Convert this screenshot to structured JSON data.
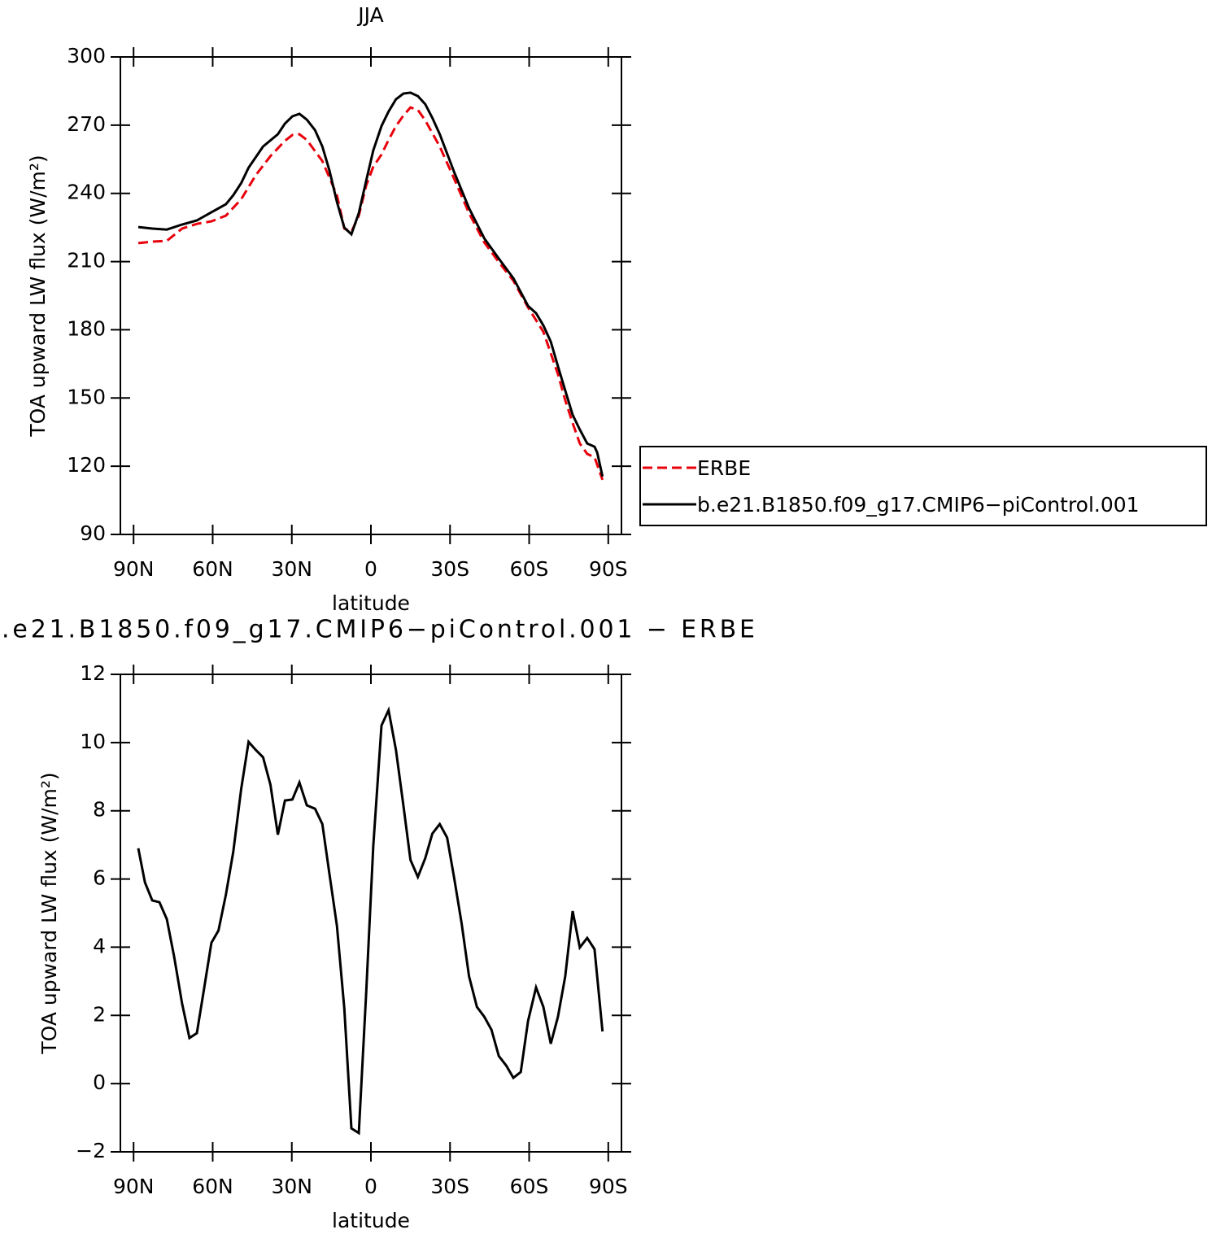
{
  "chart_data": [
    {
      "type": "line",
      "title": "JJA",
      "xlabel": "latitude",
      "ylabel": "TOA upward LW flux (W/m²)",
      "xlim": [
        95,
        -95
      ],
      "xticks": [
        {
          "value": 90,
          "label": "90N"
        },
        {
          "value": 60,
          "label": "60N"
        },
        {
          "value": 30,
          "label": "30N"
        },
        0,
        {
          "value": -30,
          "label": "30S"
        },
        {
          "value": -60,
          "label": "60S"
        },
        {
          "value": -90,
          "label": "90S"
        }
      ],
      "ylim": [
        90,
        300
      ],
      "yticks": [
        90,
        120,
        150,
        180,
        210,
        240,
        270,
        300
      ],
      "legend": "right",
      "series": [
        {
          "name": "ERBE",
          "color": "#e8000b",
          "linestyle": "dashed",
          "x": [
            88.2,
            82.9,
            77.4,
            71.6,
            66.0,
            60.5,
            55.0,
            49.2,
            43.6,
            38.1,
            32.6,
            29.8,
            27.1,
            24.3,
            18.4,
            12.9,
            10.1,
            7.4,
            4.6,
            1.8,
            -0.9,
            -4.0,
            -6.7,
            -9.5,
            -12.3,
            -15.0,
            -17.8,
            -20.6,
            -26.1,
            -31.6,
            -37.2,
            -43.0,
            -48.5,
            -54.0,
            -59.6,
            -65.4,
            -70.9,
            -73.7,
            -76.5,
            -79.2,
            -82.0,
            -84.8,
            -87.8
          ],
          "values": [
            218.1,
            218.8,
            219.1,
            224.5,
            226.6,
            227.7,
            230.2,
            237.4,
            248.1,
            256.4,
            263.1,
            265.7,
            266,
            263.5,
            254.2,
            239.2,
            224.5,
            223,
            230.2,
            243.5,
            251.7,
            257.1,
            263.5,
            269.6,
            274.2,
            277.8,
            276.7,
            272.1,
            260.6,
            246.3,
            231.3,
            218.4,
            209.8,
            201.6,
            189.8,
            179.1,
            160.5,
            149,
            139,
            130,
            125.4,
            124,
            114
          ]
        },
        {
          "name": "b.e21.B1850.f09_g17.CMIP6−piControl.001",
          "color": "#000000",
          "linestyle": "solid",
          "x": [
            88.2,
            82.9,
            77.4,
            71.6,
            66.0,
            60.5,
            55.0,
            52.2,
            49.2,
            46.4,
            40.9,
            35.3,
            32.6,
            29.8,
            27.1,
            24.3,
            21.2,
            18.4,
            15.7,
            12.9,
            10.1,
            7.4,
            4.6,
            1.8,
            -0.9,
            -4.0,
            -6.7,
            -9.5,
            -12.3,
            -15.0,
            -17.8,
            -20.6,
            -23.3,
            -26.1,
            -31.6,
            -37.2,
            -43.0,
            -48.5,
            -54.0,
            -59.6,
            -62.6,
            -65.4,
            -68.2,
            -70.9,
            -73.7,
            -76.5,
            -79.2,
            -82.0,
            -84.8,
            -85.8,
            -87.8
          ],
          "values": [
            225.2,
            224.5,
            224.1,
            226.3,
            228.1,
            231.7,
            235.2,
            239.2,
            244.5,
            251.3,
            260.6,
            266,
            270.7,
            273.9,
            275,
            272.4,
            267.8,
            260.6,
            249.9,
            236.3,
            224.9,
            222,
            231.3,
            245.6,
            258.9,
            269.6,
            276,
            281.4,
            283.9,
            284.3,
            282.8,
            279.2,
            273.2,
            266,
            249.2,
            233.5,
            220.2,
            211.3,
            202.7,
            190.5,
            187.3,
            181.9,
            174.8,
            164,
            153.3,
            142.6,
            136.1,
            130,
            128.6,
            126,
            115.5
          ]
        }
      ]
    },
    {
      "type": "line",
      "title": ".e21.B1850.f09_g17.CMIP6−piControl.001  −  ERBE",
      "xlabel": "latitude",
      "ylabel": "TOA upward LW flux (W/m²)",
      "xlim": [
        95,
        -95
      ],
      "xticks": [
        {
          "value": 90,
          "label": "90N"
        },
        {
          "value": 60,
          "label": "60N"
        },
        {
          "value": 30,
          "label": "30N"
        },
        0,
        {
          "value": -30,
          "label": "30S"
        },
        {
          "value": -60,
          "label": "60S"
        },
        {
          "value": -90,
          "label": "90S"
        }
      ],
      "ylim": [
        -2,
        12
      ],
      "yticks": [
        {
          "value": -2,
          "label": "−2"
        },
        0,
        2,
        4,
        6,
        8,
        10,
        12
      ],
      "series": [
        {
          "color": "#000000",
          "linestyle": "solid",
          "x": [
            88.2,
            85.7,
            82.9,
            80.2,
            77.4,
            74.6,
            71.6,
            68.8,
            66.0,
            63.3,
            60.5,
            57.8,
            55.0,
            52.2,
            49.2,
            46.4,
            43.6,
            40.9,
            38.1,
            35.3,
            32.6,
            29.8,
            27.1,
            24.3,
            21.2,
            18.4,
            15.7,
            12.9,
            10.1,
            7.4,
            4.6,
            1.8,
            -0.9,
            -4.0,
            -6.7,
            -9.5,
            -12.3,
            -15.0,
            -17.8,
            -20.6,
            -23.3,
            -26.1,
            -28.9,
            -31.6,
            -34.4,
            -37.2,
            -40.2,
            -43.0,
            -45.7,
            -48.5,
            -51.3,
            -54.0,
            -56.8,
            -59.6,
            -62.6,
            -65.4,
            -68.2,
            -70.9,
            -73.7,
            -76.5,
            -79.2,
            -82.0,
            -84.8,
            -87.8
          ],
          "values": [
            6.9,
            5.9,
            5.37,
            5.32,
            4.82,
            3.72,
            2.34,
            1.34,
            1.48,
            2.77,
            4.13,
            4.49,
            5.54,
            6.8,
            8.64,
            10.02,
            9.78,
            9.57,
            8.76,
            7.3,
            8.3,
            8.33,
            8.83,
            8.16,
            8.06,
            7.61,
            6.13,
            4.63,
            2.2,
            -1.31,
            -1.45,
            2.67,
            6.97,
            10.5,
            10.95,
            9.78,
            8.16,
            6.56,
            6.06,
            6.61,
            7.33,
            7.61,
            7.21,
            6.01,
            4.7,
            3.15,
            2.25,
            1.96,
            1.58,
            0.81,
            0.53,
            0.17,
            0.34,
            1.84,
            2.82,
            2.25,
            1.17,
            1.96,
            3.15,
            5.06,
            3.99,
            4.27,
            3.94,
            1.53
          ]
        }
      ]
    }
  ]
}
